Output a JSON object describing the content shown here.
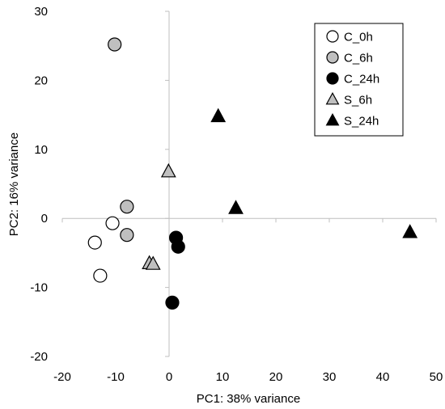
{
  "chart_data": {
    "type": "scatter",
    "xlabel": "PC1: 38% variance",
    "ylabel": "PC2: 16% variance",
    "xlim": [
      -20,
      50
    ],
    "ylim": [
      -20,
      30
    ],
    "xticks": [
      -20,
      -10,
      0,
      10,
      20,
      30,
      40,
      50
    ],
    "yticks": [
      -20,
      -10,
      0,
      10,
      20,
      30
    ],
    "grid": false,
    "legend_position": "top-right",
    "series": [
      {
        "name": "C_0h",
        "marker": "circle",
        "fill": "#ffffff",
        "stroke": "#000000",
        "x": [
          -10.6,
          -13.9,
          -12.9
        ],
        "y": [
          -0.7,
          -3.5,
          -8.3
        ]
      },
      {
        "name": "C_6h",
        "marker": "circle",
        "fill": "#bfbfbf",
        "stroke": "#000000",
        "x": [
          -10.2,
          -7.9,
          -7.9
        ],
        "y": [
          25.2,
          1.7,
          -2.4
        ]
      },
      {
        "name": "C_24h",
        "marker": "circle",
        "fill": "#000000",
        "stroke": "#000000",
        "x": [
          1.3,
          1.7,
          0.6
        ],
        "y": [
          -2.8,
          -4.1,
          -12.2
        ]
      },
      {
        "name": "S_6h",
        "marker": "triangle",
        "fill": "#bfbfbf",
        "stroke": "#000000",
        "x": [
          -0.1,
          -3.7,
          -3.0
        ],
        "y": [
          6.8,
          -6.5,
          -6.6
        ]
      },
      {
        "name": "S_24h",
        "marker": "triangle",
        "fill": "#000000",
        "stroke": "#000000",
        "x": [
          9.2,
          12.5,
          45.1
        ],
        "y": [
          14.8,
          1.5,
          -2.0
        ]
      }
    ]
  }
}
